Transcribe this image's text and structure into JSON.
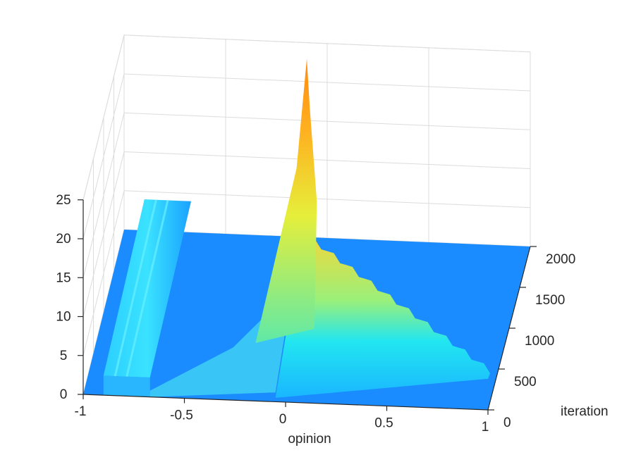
{
  "chart_data": {
    "type": "surface",
    "title": "",
    "xlabel": "opinion",
    "ylabel": "iteration",
    "zlabel": "",
    "xlim": [
      -1,
      1
    ],
    "ylim": [
      0,
      2000
    ],
    "zlim": [
      0,
      25
    ],
    "x_ticks": [
      "-1",
      "-0.5",
      "0",
      "0.5",
      "1"
    ],
    "y_ticks": [
      "0",
      "500",
      "1000",
      "1500",
      "2000"
    ],
    "z_ticks": [
      "0",
      "5",
      "10",
      "15",
      "20",
      "25"
    ],
    "grid": true,
    "colormap": "jet",
    "base_color": "#1a8cff",
    "features": [
      {
        "x": [
          -0.9,
          -0.67
        ],
        "y": [
          0,
          2000
        ],
        "z": [
          2.5,
          4.0
        ],
        "description": "plateau"
      },
      {
        "x": [
          -0.12,
          -0.03
        ],
        "y": [
          0,
          2000
        ],
        "z_max": 24,
        "description": "peak"
      },
      {
        "x": [
          -0.05,
          1.0
        ],
        "y": [
          0,
          1300
        ],
        "z": [
          8,
          4
        ],
        "description": "ridge"
      }
    ]
  }
}
